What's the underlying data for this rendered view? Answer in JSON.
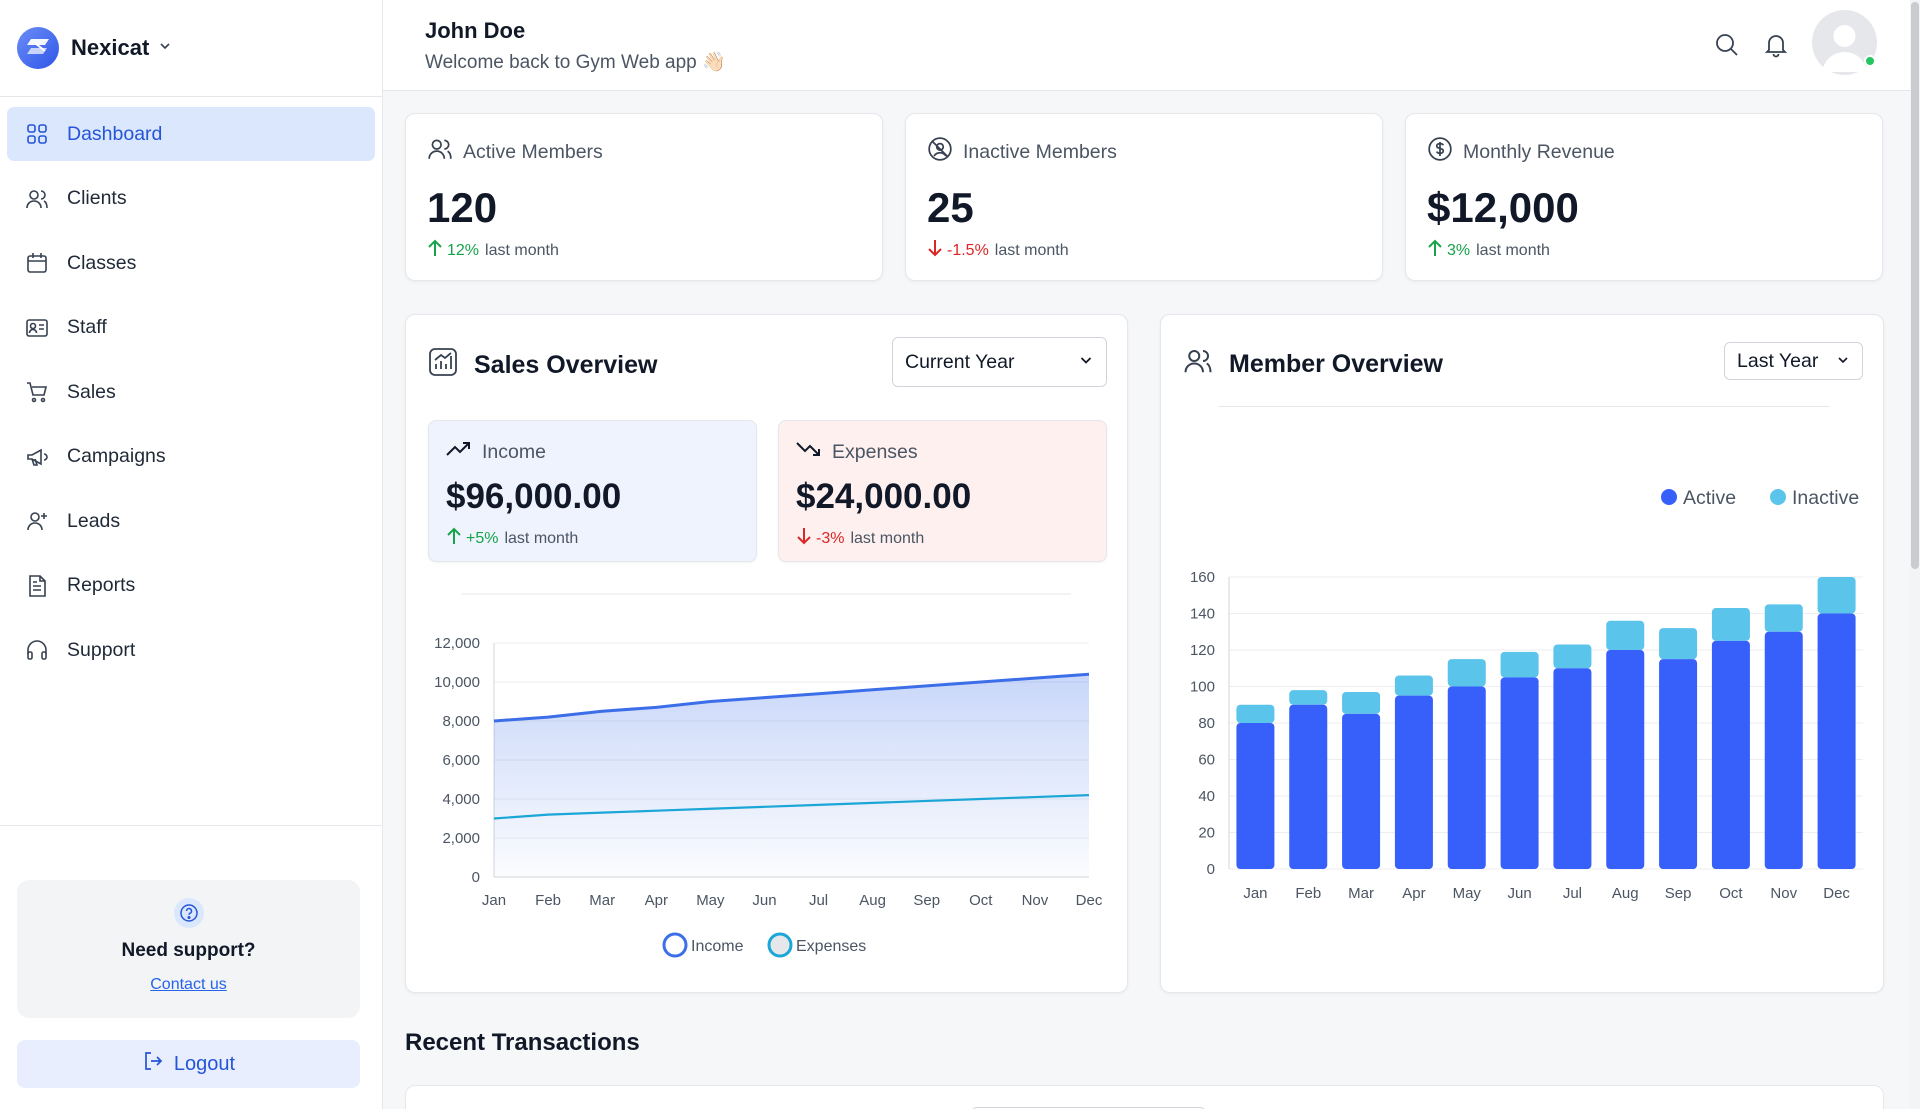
{
  "brand": {
    "name": "Nexicat"
  },
  "sidebar": {
    "items": [
      {
        "label": "Dashboard",
        "icon": "grid-icon",
        "active": true
      },
      {
        "label": "Clients",
        "icon": "users-icon"
      },
      {
        "label": "Classes",
        "icon": "calendar-icon"
      },
      {
        "label": "Staff",
        "icon": "id-card-icon"
      },
      {
        "label": "Sales",
        "icon": "cart-icon"
      },
      {
        "label": "Campaigns",
        "icon": "megaphone-icon"
      },
      {
        "label": "Leads",
        "icon": "user-plus-icon"
      },
      {
        "label": "Reports",
        "icon": "file-icon"
      },
      {
        "label": "Support",
        "icon": "headphones-icon"
      }
    ],
    "support": {
      "title": "Need support?",
      "link": "Contact us"
    },
    "logout": "Logout"
  },
  "header": {
    "user_name": "John Doe",
    "welcome": "Welcome back to Gym Web app 👋🏻"
  },
  "stats": [
    {
      "label": "Active Members",
      "value": "120",
      "change": "12%",
      "direction": "up",
      "suffix": "last month"
    },
    {
      "label": "Inactive Members",
      "value": "25",
      "change": "-1.5%",
      "direction": "down",
      "suffix": "last month"
    },
    {
      "label": "Monthly Revenue",
      "value": "$12,000",
      "change": "3%",
      "direction": "up",
      "suffix": "last month"
    }
  ],
  "sales": {
    "title": "Sales Overview",
    "period": "Current Year",
    "income": {
      "label": "Income",
      "value": "$96,000.00",
      "change": "+5%",
      "suffix": "last month"
    },
    "expenses": {
      "label": "Expenses",
      "value": "$24,000.00",
      "change": "-3%",
      "suffix": "last month"
    }
  },
  "members": {
    "title": "Member Overview",
    "period": "Last Year"
  },
  "recent": {
    "title": "Recent Transactions"
  },
  "colors": {
    "accent": "#2555d8",
    "active_bar": "#375ffa",
    "inactive_bar": "#5bc4eb",
    "income_line": "#3b6ee8",
    "expenses_line": "#1aa6d6",
    "up": "#16a34a",
    "down": "#dc2626"
  },
  "chart_data": [
    {
      "type": "area",
      "categories": [
        "Jan",
        "Feb",
        "Mar",
        "Apr",
        "May",
        "Jun",
        "Jul",
        "Aug",
        "Sep",
        "Oct",
        "Nov",
        "Dec"
      ],
      "series": [
        {
          "name": "Income",
          "values": [
            8000,
            8200,
            8500,
            8700,
            9000,
            9200,
            9400,
            9600,
            9800,
            10000,
            10200,
            10400
          ]
        },
        {
          "name": "Expenses",
          "values": [
            3000,
            3200,
            3300,
            3400,
            3500,
            3600,
            3700,
            3800,
            3900,
            4000,
            4100,
            4200
          ]
        }
      ],
      "ylim": [
        0,
        12000
      ],
      "yticks": [
        0,
        2000,
        4000,
        6000,
        8000,
        10000,
        12000
      ],
      "ytick_labels": [
        "0",
        "2,000",
        "4,000",
        "6,000",
        "8,000",
        "10,000",
        "12,000"
      ],
      "grid": true,
      "legend": "bottom"
    },
    {
      "type": "bar",
      "stacked": true,
      "categories": [
        "Jan",
        "Feb",
        "Mar",
        "Apr",
        "May",
        "Jun",
        "Jul",
        "Aug",
        "Sep",
        "Oct",
        "Nov",
        "Dec"
      ],
      "series": [
        {
          "name": "Active",
          "values": [
            80,
            90,
            85,
            95,
            100,
            105,
            110,
            120,
            115,
            125,
            130,
            140
          ]
        },
        {
          "name": "Inactive",
          "values": [
            10,
            8,
            12,
            11,
            15,
            14,
            13,
            16,
            17,
            18,
            15,
            20
          ]
        }
      ],
      "ylim": [
        0,
        160
      ],
      "yticks": [
        0,
        20,
        40,
        60,
        80,
        100,
        120,
        140,
        160
      ],
      "grid": true,
      "legend": "top-right"
    }
  ]
}
